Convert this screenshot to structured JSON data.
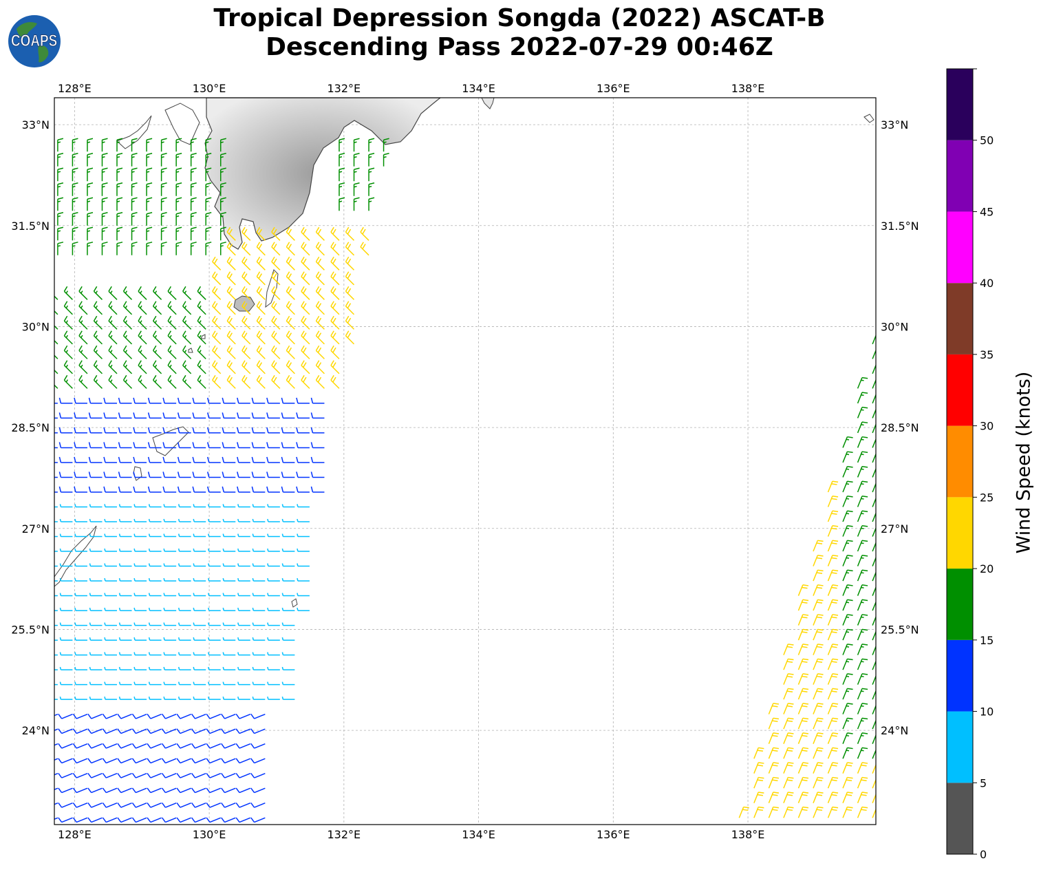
{
  "title": {
    "line1": "Tropical Depression Songda (2022) ASCAT-B",
    "line2": "Descending Pass 2022-07-29 00:46Z"
  },
  "logo": {
    "text": "COAPS",
    "ocean_color": "#1b5fb0",
    "land_color": "#3e8a3a"
  },
  "map": {
    "lon_labels": [
      "128°E",
      "130°E",
      "132°E",
      "134°E",
      "136°E",
      "138°E"
    ],
    "lat_labels": [
      "33°N",
      "31.5°N",
      "30°N",
      "28.5°N",
      "27°N",
      "25.5°N",
      "24°N"
    ],
    "lon_range": [
      127.7,
      139.9
    ],
    "lat_range": [
      22.6,
      33.4
    ],
    "grid": true
  },
  "colorbar": {
    "label": "Wind Speed (knots)",
    "ticks": [
      "0",
      "5",
      "10",
      "15",
      "20",
      "25",
      "30",
      "35",
      "40",
      "45",
      "50"
    ],
    "bins": [
      {
        "range": [
          0,
          5
        ],
        "color": "#555555"
      },
      {
        "range": [
          5,
          10
        ],
        "color": "#00bfff"
      },
      {
        "range": [
          10,
          15
        ],
        "color": "#0033ff"
      },
      {
        "range": [
          15,
          20
        ],
        "color": "#008f00"
      },
      {
        "range": [
          20,
          25
        ],
        "color": "#ffd700"
      },
      {
        "range": [
          25,
          30
        ],
        "color": "#ff8c00"
      },
      {
        "range": [
          30,
          35
        ],
        "color": "#ff0000"
      },
      {
        "range": [
          35,
          40
        ],
        "color": "#7f3b28"
      },
      {
        "range": [
          40,
          45
        ],
        "color": "#ff00ff"
      },
      {
        "range": [
          45,
          50
        ],
        "color": "#8000b3"
      },
      {
        "range": [
          50,
          55
        ],
        "color": "#2a005c"
      }
    ]
  },
  "wind_field": {
    "units": "knots",
    "regions": [
      {
        "lat": [
          22.6,
          24.3
        ],
        "lon": [
          127.7,
          131.0
        ],
        "speed": 12,
        "direction": "from ENE"
      },
      {
        "lat": [
          24.3,
          27.5
        ],
        "lon": [
          127.7,
          131.5
        ],
        "speed": 9,
        "direction": "from E"
      },
      {
        "lat": [
          27.5,
          29.0
        ],
        "lon": [
          127.7,
          131.8
        ],
        "speed": 13,
        "direction": "from E"
      },
      {
        "lat": [
          29.0,
          30.5
        ],
        "lon": [
          127.7,
          130.0
        ],
        "speed": 17,
        "direction": "from SE"
      },
      {
        "lat": [
          29.0,
          31.3
        ],
        "lon": [
          130.0,
          132.4
        ],
        "speed": 22,
        "direction": "from SE"
      },
      {
        "lat": [
          31.0,
          32.8
        ],
        "lon": [
          127.7,
          130.3
        ],
        "speed": 16,
        "direction": "from S"
      },
      {
        "lat": [
          31.6,
          32.8
        ],
        "lon": [
          131.9,
          132.7
        ],
        "speed": 17,
        "direction": "from S"
      },
      {
        "lat": [
          22.6,
          29.8
        ],
        "lon": [
          137.8,
          139.9
        ],
        "speed": 22,
        "direction": "from SSW"
      },
      {
        "lat": [
          23.5,
          29.8
        ],
        "lon": [
          139.2,
          139.9
        ],
        "speed": 17,
        "direction": "from SSW"
      }
    ]
  }
}
